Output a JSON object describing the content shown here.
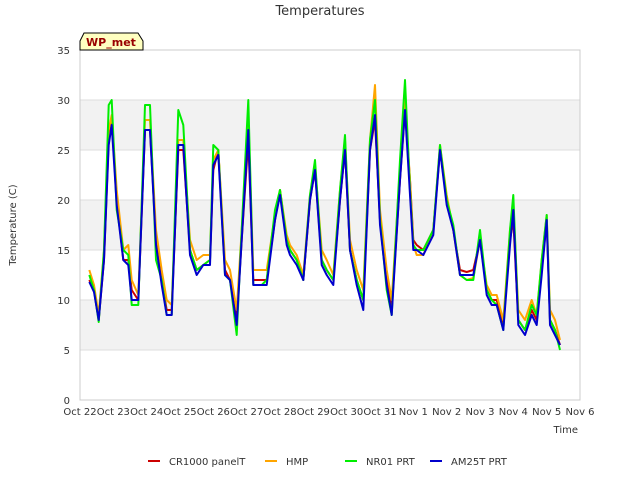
{
  "chart_data": {
    "type": "line",
    "title": "Temperatures",
    "xlabel": "Time",
    "ylabel": "Temperature (C)",
    "ylim": [
      0,
      35
    ],
    "yticks": [
      0,
      5,
      10,
      15,
      20,
      25,
      30,
      35
    ],
    "xlim": [
      0,
      15
    ],
    "xtick_labels": [
      "Oct 22",
      "Oct 23",
      "Oct 24",
      "Oct 25",
      "Oct 26",
      "Oct 27",
      "Oct 28",
      "Oct 29",
      "Oct 30",
      "Oct 31",
      "Nov 1",
      "Nov 2",
      "Nov 3",
      "Nov 4",
      "Nov 5",
      "Nov 6"
    ],
    "badge": "WP_met",
    "grid": true,
    "legend_position": "bottom",
    "colors": {
      "band": "#f2f2f2",
      "gridline": "#dddddd",
      "badge_fill": "#ffffc0",
      "badge_text": "#990000"
    },
    "series": [
      {
        "name": "CR1000 panelT",
        "color": "#cc0000",
        "x": [
          0.28,
          0.42,
          0.56,
          0.72,
          0.86,
          0.95,
          1.1,
          1.3,
          1.45,
          1.55,
          1.75,
          1.95,
          2.1,
          2.28,
          2.45,
          2.6,
          2.75,
          2.95,
          3.1,
          3.3,
          3.5,
          3.7,
          3.9,
          4.0,
          4.15,
          4.35,
          4.5,
          4.7,
          4.85,
          5.05,
          5.2,
          5.45,
          5.6,
          5.85,
          6.0,
          6.2,
          6.3,
          6.5,
          6.7,
          6.9,
          7.05,
          7.25,
          7.4,
          7.6,
          7.8,
          7.95,
          8.1,
          8.3,
          8.5,
          8.7,
          8.85,
          9.0,
          9.2,
          9.35,
          9.6,
          9.75,
          9.9,
          10.0,
          10.1,
          10.3,
          10.6,
          10.8,
          11.0,
          11.2,
          11.4,
          11.6,
          11.8,
          12.0,
          12.2,
          12.35,
          12.5,
          12.7,
          12.9,
          13.0,
          13.15,
          13.35,
          13.55,
          13.7,
          13.85,
          14.0,
          14.1,
          14.25,
          14.4
        ],
        "y": [
          12,
          11,
          8,
          14,
          26,
          28,
          20,
          14,
          14,
          11,
          10,
          27,
          27,
          16,
          12,
          9,
          9,
          25,
          25,
          15,
          13,
          13.5,
          14,
          23,
          25,
          13,
          12,
          8,
          16,
          26,
          12,
          12,
          12,
          18,
          21,
          16,
          15,
          14,
          12,
          20,
          23,
          14,
          13,
          12,
          20,
          25,
          15,
          12,
          10,
          25,
          28,
          18,
          12,
          9,
          22,
          29,
          22,
          16,
          15.5,
          15,
          17,
          25,
          20,
          17,
          13,
          12.8,
          13,
          16,
          11,
          10,
          10,
          7.5,
          16,
          18,
          8,
          7,
          9,
          8,
          13,
          18,
          8,
          7,
          5.5
        ]
      },
      {
        "name": "HMP",
        "color": "#ffa500",
        "x": [
          0.28,
          0.42,
          0.56,
          0.72,
          0.86,
          0.95,
          1.1,
          1.3,
          1.45,
          1.55,
          1.75,
          1.95,
          2.1,
          2.28,
          2.45,
          2.6,
          2.75,
          2.95,
          3.1,
          3.3,
          3.5,
          3.7,
          3.9,
          4.0,
          4.15,
          4.35,
          4.5,
          4.7,
          4.85,
          5.05,
          5.2,
          5.45,
          5.6,
          5.85,
          6.0,
          6.2,
          6.3,
          6.5,
          6.7,
          6.9,
          7.05,
          7.25,
          7.4,
          7.6,
          7.8,
          7.95,
          8.1,
          8.3,
          8.5,
          8.7,
          8.85,
          9.0,
          9.2,
          9.35,
          9.6,
          9.75,
          9.9,
          10.0,
          10.1,
          10.3,
          10.6,
          10.8,
          11.0,
          11.2,
          11.4,
          11.6,
          11.8,
          12.0,
          12.2,
          12.35,
          12.5,
          12.7,
          12.9,
          13.0,
          13.15,
          13.35,
          13.55,
          13.7,
          13.85,
          14.0,
          14.1,
          14.25,
          14.4
        ],
        "y": [
          13,
          11.5,
          8.5,
          15,
          27,
          28.5,
          21,
          15,
          15.5,
          12,
          10.5,
          28,
          28,
          17,
          13,
          10,
          9.5,
          26,
          26,
          16,
          14,
          14.5,
          14.5,
          24,
          25,
          14,
          13,
          9,
          17,
          28,
          13,
          13,
          13,
          18.5,
          21,
          16.5,
          15.5,
          14.5,
          12.5,
          20.5,
          23.5,
          15,
          14,
          12.5,
          21,
          26,
          16,
          13,
          11,
          26,
          31.5,
          19,
          13,
          10,
          23,
          30,
          22,
          15.5,
          14.5,
          14.5,
          17,
          25.5,
          20.5,
          17,
          12.5,
          12,
          12.2,
          16,
          11.5,
          10.5,
          10.5,
          8,
          17,
          19.5,
          9,
          8,
          10,
          8.5,
          14,
          18.5,
          9,
          8,
          6
        ]
      },
      {
        "name": "NR01 PRT",
        "color": "#00ee00",
        "x": [
          0.28,
          0.42,
          0.56,
          0.72,
          0.86,
          0.95,
          1.1,
          1.3,
          1.45,
          1.55,
          1.75,
          1.95,
          2.1,
          2.28,
          2.45,
          2.6,
          2.75,
          2.95,
          3.1,
          3.3,
          3.5,
          3.7,
          3.9,
          4.0,
          4.15,
          4.35,
          4.5,
          4.7,
          4.85,
          5.05,
          5.2,
          5.45,
          5.6,
          5.85,
          6.0,
          6.2,
          6.3,
          6.5,
          6.7,
          6.9,
          7.05,
          7.25,
          7.4,
          7.6,
          7.8,
          7.95,
          8.1,
          8.3,
          8.5,
          8.7,
          8.85,
          9.0,
          9.2,
          9.35,
          9.6,
          9.75,
          9.9,
          10.0,
          10.1,
          10.3,
          10.6,
          10.8,
          11.0,
          11.2,
          11.4,
          11.6,
          11.8,
          12.0,
          12.2,
          12.35,
          12.5,
          12.7,
          12.9,
          13.0,
          13.15,
          13.35,
          13.55,
          13.7,
          13.85,
          14.0,
          14.1,
          14.25,
          14.4
        ],
        "y": [
          12.5,
          11,
          7.8,
          15,
          29.5,
          30,
          19,
          15,
          14.5,
          9.5,
          9.5,
          29.5,
          29.5,
          14,
          12,
          8.5,
          8.5,
          29,
          27.5,
          15,
          13,
          13.5,
          14,
          25.5,
          25,
          12.5,
          12,
          6.5,
          17,
          30,
          11.5,
          11.5,
          12,
          19,
          21,
          16,
          15,
          14,
          12,
          20.5,
          24,
          14,
          13,
          12,
          21,
          26.5,
          15,
          12,
          10,
          26,
          30,
          18,
          11,
          8.5,
          24,
          32,
          21,
          15.5,
          15,
          15,
          17,
          25.5,
          20,
          17.5,
          12.5,
          12,
          12,
          17,
          11,
          10,
          9.5,
          7,
          17,
          20.5,
          8,
          7,
          9.5,
          8.5,
          14,
          18.5,
          8,
          7,
          5
        ]
      },
      {
        "name": "AM25T PRT",
        "color": "#0000cc",
        "x": [
          0.28,
          0.42,
          0.56,
          0.72,
          0.86,
          0.95,
          1.1,
          1.3,
          1.45,
          1.55,
          1.75,
          1.95,
          2.1,
          2.28,
          2.45,
          2.6,
          2.75,
          2.95,
          3.1,
          3.3,
          3.5,
          3.7,
          3.9,
          4.0,
          4.15,
          4.35,
          4.5,
          4.7,
          4.85,
          5.05,
          5.2,
          5.45,
          5.6,
          5.85,
          6.0,
          6.2,
          6.3,
          6.5,
          6.7,
          6.9,
          7.05,
          7.25,
          7.4,
          7.6,
          7.8,
          7.95,
          8.1,
          8.3,
          8.5,
          8.7,
          8.85,
          9.0,
          9.2,
          9.35,
          9.6,
          9.75,
          9.9,
          10.0,
          10.1,
          10.3,
          10.6,
          10.8,
          11.0,
          11.2,
          11.4,
          11.6,
          11.8,
          12.0,
          12.2,
          12.35,
          12.5,
          12.7,
          12.9,
          13.0,
          13.15,
          13.35,
          13.55,
          13.7,
          13.85,
          14.0,
          14.1,
          14.25,
          14.4
        ],
        "y": [
          11.8,
          10.8,
          8,
          14,
          25.5,
          27.5,
          19.5,
          14,
          13.5,
          10,
          10,
          27,
          27,
          15.5,
          11.5,
          8.5,
          8.5,
          25.5,
          25.5,
          14.5,
          12.5,
          13.5,
          13.5,
          23.5,
          24.5,
          12.5,
          12,
          7.5,
          16,
          27,
          11.5,
          11.5,
          11.5,
          18,
          20.5,
          15.5,
          14.5,
          13.5,
          12,
          20,
          23,
          13.5,
          12.5,
          11.5,
          20,
          25,
          15,
          11.5,
          9,
          25,
          28.5,
          17.5,
          11.5,
          8.5,
          22,
          29,
          20.5,
          15,
          15,
          14.5,
          16.5,
          25,
          19.5,
          17,
          12.5,
          12.5,
          12.5,
          16,
          10.5,
          9.5,
          9.5,
          7,
          15.5,
          19,
          7.5,
          6.5,
          8.5,
          7.5,
          12.5,
          18,
          7.5,
          6.5,
          5.5
        ]
      }
    ]
  }
}
